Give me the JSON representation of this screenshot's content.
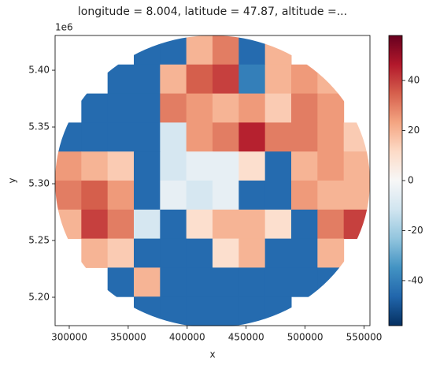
{
  "chart_data": {
    "type": "heatmap",
    "title": "longitude = 8.004, latitude = 47.87, altitude =...",
    "x_label": "x",
    "y_label": "y",
    "y_offset_label": "1e6",
    "x": [
      299125,
      321375,
      343625,
      365875,
      388125,
      410375,
      432625,
      454875,
      477125,
      499375,
      521625,
      543875
    ],
    "y": [
      5417820,
      5392260,
      5366700,
      5341140,
      5315580,
      5290020,
      5264460,
      5238900,
      5213340,
      5187780
    ],
    "values": [
      [
        null,
        null,
        null,
        -45,
        -45,
        20,
        30,
        -45,
        20,
        null,
        null,
        null
      ],
      [
        null,
        null,
        -45,
        -45,
        20,
        35,
        40,
        -40,
        20,
        25,
        20,
        null
      ],
      [
        null,
        -45,
        -45,
        -45,
        30,
        25,
        20,
        25,
        15,
        30,
        25,
        null
      ],
      [
        -45,
        -45,
        -45,
        -45,
        -10,
        25,
        30,
        45,
        30,
        30,
        25,
        15
      ],
      [
        25,
        20,
        15,
        -45,
        -10,
        -5,
        -5,
        10,
        -45,
        20,
        25,
        20
      ],
      [
        30,
        35,
        25,
        -45,
        -5,
        -10,
        -5,
        -45,
        -45,
        25,
        20,
        20
      ],
      [
        20,
        40,
        30,
        -10,
        -45,
        10,
        20,
        20,
        10,
        -45,
        30,
        40
      ],
      [
        null,
        20,
        15,
        -45,
        -45,
        -45,
        10,
        20,
        -45,
        -45,
        20,
        null
      ],
      [
        null,
        null,
        -45,
        20,
        -45,
        -45,
        -45,
        -45,
        -45,
        -45,
        -45,
        null
      ],
      [
        null,
        null,
        null,
        -45,
        -45,
        -45,
        -45,
        -45,
        -45,
        null,
        null,
        null
      ]
    ],
    "xlim": [
      288000,
      555000
    ],
    "xticks": [
      300000,
      350000,
      400000,
      450000,
      500000,
      550000
    ],
    "ylim": [
      5175000,
      5430600
    ],
    "yticks": [
      {
        "value": 5200000,
        "label": "5.20"
      },
      {
        "value": 5250000,
        "label": "5.25"
      },
      {
        "value": 5300000,
        "label": "5.30"
      },
      {
        "value": 5350000,
        "label": "5.35"
      },
      {
        "value": 5400000,
        "label": "5.40"
      }
    ],
    "clim": [
      -58,
      58
    ],
    "cticks": [
      -40,
      -20,
      0,
      20,
      40
    ],
    "colorscale": [
      "#053061",
      "#2166ac",
      "#4393c3",
      "#92c5de",
      "#d1e5f0",
      "#f7f7f7",
      "#fddbc7",
      "#f4a582",
      "#d6604d",
      "#b2182b",
      "#67001f"
    ]
  }
}
